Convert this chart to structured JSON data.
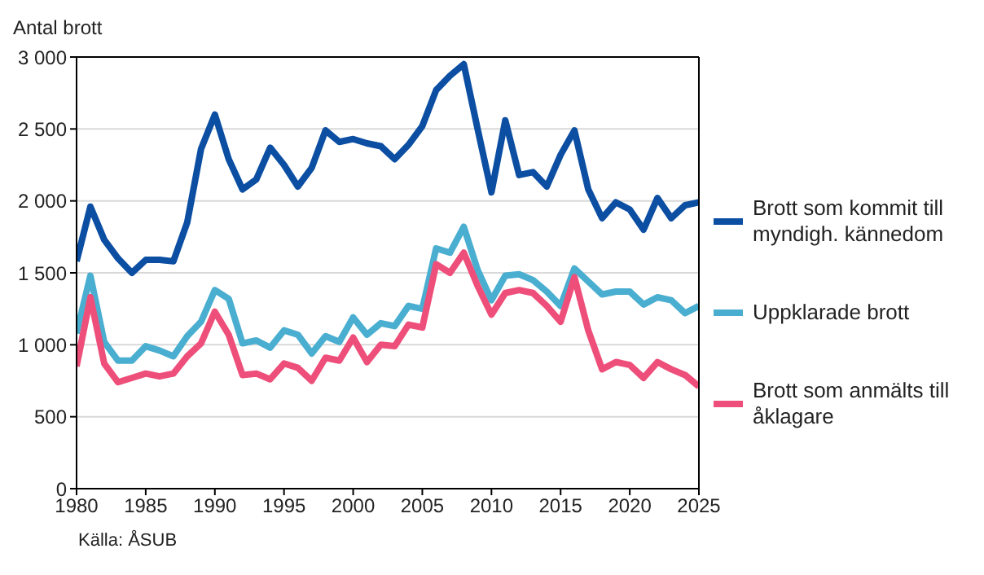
{
  "chart_data": {
    "type": "line",
    "ylabel": "Antal brott",
    "annotations": [
      "Källa: ÅSUB"
    ],
    "x": [
      1980,
      1981,
      1982,
      1983,
      1984,
      1985,
      1986,
      1987,
      1988,
      1989,
      1990,
      1991,
      1992,
      1993,
      1994,
      1995,
      1996,
      1997,
      1998,
      1999,
      2000,
      2001,
      2002,
      2003,
      2004,
      2005,
      2006,
      2007,
      2008,
      2009,
      2010,
      2011,
      2012,
      2013,
      2014,
      2015,
      2016,
      2017,
      2018,
      2019,
      2020,
      2021,
      2022,
      2023,
      2024,
      2025
    ],
    "series": [
      {
        "name": "Brott som kommit till myndigh. kännedom",
        "color": "#0b4ea2",
        "values": [
          1580,
          1960,
          1730,
          1600,
          1500,
          1590,
          1590,
          1580,
          1850,
          2360,
          2600,
          2290,
          2080,
          2150,
          2370,
          2250,
          2100,
          2230,
          2490,
          2410,
          2430,
          2400,
          2380,
          2290,
          2390,
          2520,
          2770,
          2870,
          2950,
          2500,
          2060,
          2560,
          2180,
          2200,
          2100,
          2320,
          2490,
          2080,
          1880,
          1990,
          1940,
          1800,
          2020,
          1880,
          1970,
          1990
        ]
      },
      {
        "name": "Uppklarade brott",
        "color": "#4aaed0",
        "values": [
          1080,
          1480,
          1020,
          890,
          890,
          990,
          960,
          920,
          1060,
          1160,
          1380,
          1320,
          1010,
          1030,
          980,
          1100,
          1070,
          940,
          1060,
          1020,
          1190,
          1070,
          1150,
          1130,
          1270,
          1250,
          1670,
          1640,
          1820,
          1520,
          1310,
          1480,
          1490,
          1450,
          1370,
          1270,
          1530,
          1440,
          1350,
          1370,
          1370,
          1280,
          1330,
          1310,
          1220,
          1270
        ]
      },
      {
        "name": "Brott som anmälts till åklagare",
        "color": "#ee4f7a",
        "values": [
          850,
          1330,
          870,
          740,
          770,
          800,
          780,
          800,
          920,
          1010,
          1230,
          1070,
          790,
          800,
          760,
          870,
          840,
          750,
          910,
          890,
          1050,
          880,
          1000,
          990,
          1140,
          1120,
          1560,
          1500,
          1640,
          1410,
          1210,
          1360,
          1380,
          1360,
          1270,
          1160,
          1470,
          1100,
          830,
          880,
          860,
          770,
          880,
          830,
          790,
          710
        ]
      }
    ],
    "xlim": [
      1980,
      2025
    ],
    "xticks": [
      1980,
      1985,
      1990,
      1995,
      2000,
      2005,
      2010,
      2015,
      2020,
      2025
    ],
    "ylim": [
      0,
      3000
    ],
    "yticks": [
      0,
      500,
      {
        "value": 1000,
        "label": "1 000"
      },
      {
        "value": 1500,
        "label": "1 500"
      },
      {
        "value": 2000,
        "label": "2 000"
      },
      {
        "value": 2500,
        "label": "2 500"
      },
      {
        "value": 3000,
        "label": "3 000"
      }
    ],
    "grid": "y",
    "legend": "right",
    "marker": "none",
    "line_style": "solid"
  }
}
